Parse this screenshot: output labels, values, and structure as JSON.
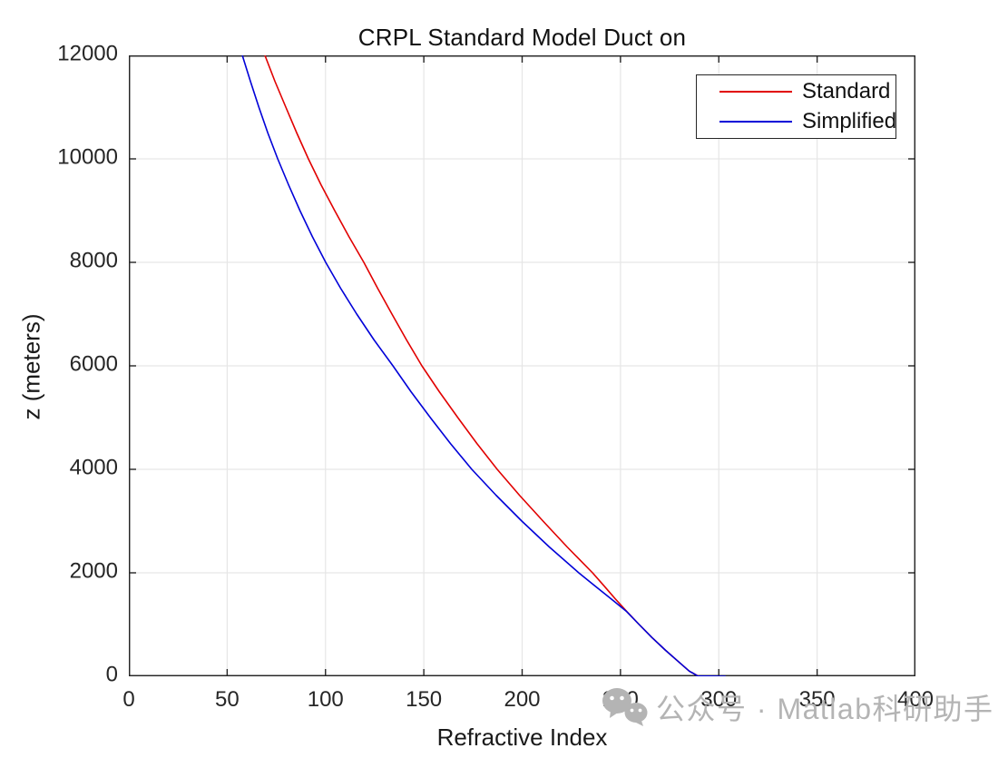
{
  "figure": {
    "title": "CRPL Standard Model Duct on",
    "xlabel": "Refractive Index",
    "ylabel": "z (meters)",
    "background": "#ffffff"
  },
  "legend": {
    "position": "northeast",
    "items": [
      {
        "label": "Standard",
        "color": "#e10000"
      },
      {
        "label": "Simplified",
        "color": "#0000d8"
      }
    ]
  },
  "watermark": {
    "icon": "wechat-icon",
    "text": "公众号 · Matlab科研助手",
    "color": "#b4b4b4"
  },
  "colors": {
    "axis": "#262626",
    "grid": "#e6e6e6",
    "standard_line": "#e10000",
    "simplified_line": "#0000d8"
  },
  "chart_data": {
    "type": "line",
    "title": "CRPL Standard Model Duct on",
    "xlabel": "Refractive Index",
    "ylabel": "z (meters)",
    "xlim": [
      0,
      400
    ],
    "ylim": [
      0,
      12000
    ],
    "xticks": [
      0,
      50,
      100,
      150,
      200,
      250,
      300,
      350,
      400
    ],
    "yticks": [
      0,
      2000,
      4000,
      6000,
      8000,
      10000,
      12000
    ],
    "grid": true,
    "legend_position": "northeast",
    "series": [
      {
        "name": "Standard",
        "color": "#e10000",
        "points_format": "[refractive_index, z_meters]",
        "points": [
          [
            69.2,
            12000
          ],
          [
            74.3,
            11500
          ],
          [
            79.8,
            11000
          ],
          [
            85.4,
            10500
          ],
          [
            91.3,
            10000
          ],
          [
            97.7,
            9500
          ],
          [
            104.7,
            9000
          ],
          [
            111.9,
            8500
          ],
          [
            119.5,
            8000
          ],
          [
            126.5,
            7500
          ],
          [
            133.8,
            7000
          ],
          [
            141.2,
            6500
          ],
          [
            149.0,
            6000
          ],
          [
            157.9,
            5500
          ],
          [
            167.3,
            5000
          ],
          [
            177.0,
            4500
          ],
          [
            187.3,
            4000
          ],
          [
            198.6,
            3500
          ],
          [
            210.6,
            3000
          ],
          [
            222.9,
            2500
          ],
          [
            235.8,
            2000
          ],
          [
            241.6,
            1750
          ],
          [
            247.3,
            1500
          ],
          [
            253.3,
            1250
          ],
          [
            259.5,
            1000
          ],
          [
            266.0,
            750
          ],
          [
            273.0,
            500
          ],
          [
            280.5,
            250
          ],
          [
            285.0,
            100
          ],
          [
            287.3,
            50
          ],
          [
            289.3,
            10
          ],
          [
            290.0,
            0
          ]
        ]
      },
      {
        "name": "Simplified",
        "color": "#0000d8",
        "points_format": "[refractive_index, z_meters]",
        "points": [
          [
            57.7,
            12000
          ],
          [
            61.8,
            11500
          ],
          [
            66.1,
            11000
          ],
          [
            70.7,
            10500
          ],
          [
            75.7,
            10000
          ],
          [
            81.2,
            9500
          ],
          [
            87.0,
            9000
          ],
          [
            93.3,
            8500
          ],
          [
            100.1,
            8000
          ],
          [
            107.7,
            7500
          ],
          [
            115.9,
            7000
          ],
          [
            124.7,
            6500
          ],
          [
            134.3,
            6000
          ],
          [
            143.5,
            5500
          ],
          [
            153.3,
            5000
          ],
          [
            163.5,
            4500
          ],
          [
            174.4,
            4000
          ],
          [
            186.7,
            3500
          ],
          [
            199.8,
            3000
          ],
          [
            213.8,
            2500
          ],
          [
            228.8,
            2000
          ],
          [
            236.9,
            1750
          ],
          [
            245.1,
            1500
          ],
          [
            253.2,
            1250
          ],
          [
            259.5,
            1000
          ],
          [
            266.0,
            750
          ],
          [
            273.0,
            500
          ],
          [
            280.5,
            250
          ],
          [
            285.0,
            100
          ],
          [
            287.3,
            50
          ],
          [
            288.8,
            15
          ],
          [
            289.3,
            5
          ],
          [
            303.5,
            0
          ]
        ]
      }
    ]
  }
}
